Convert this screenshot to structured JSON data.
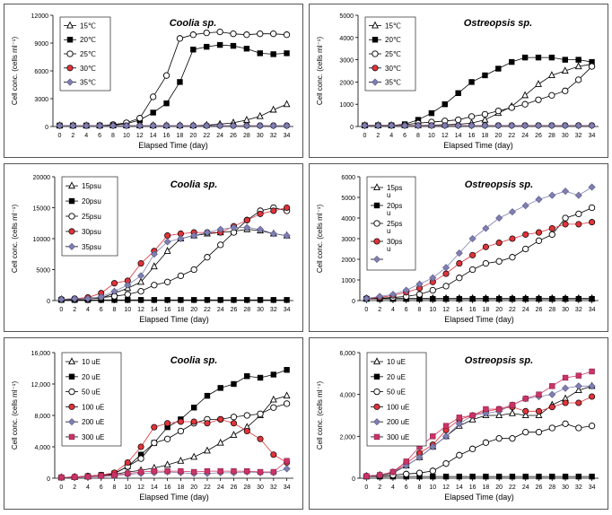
{
  "chart_data": [
    {
      "type": "line",
      "title": "Coolia sp.",
      "xlabel": "Elapsed Time (day)",
      "ylabel": "Cell conc. (cells ml⁻¹)",
      "x": [
        0,
        2,
        4,
        6,
        8,
        10,
        12,
        14,
        16,
        18,
        20,
        22,
        24,
        26,
        28,
        30,
        32,
        34
      ],
      "x_ticks": [
        "0",
        "2",
        "4",
        "6",
        "8",
        "10",
        "12",
        "14",
        "16",
        "18",
        "20",
        "22",
        "24",
        "26",
        "28",
        "30",
        "32",
        "34"
      ],
      "ylim": [
        0,
        12000
      ],
      "y_ticks": [
        "0",
        "3000",
        "6000",
        "9000",
        "12000"
      ],
      "legend_position": "top-left",
      "series": [
        {
          "name": "15℃",
          "marker": "triangle",
          "color": "#000000",
          "values": [
            100,
            100,
            100,
            100,
            100,
            100,
            100,
            100,
            100,
            100,
            100,
            150,
            250,
            400,
            700,
            1100,
            1800,
            2400
          ]
        },
        {
          "name": "20℃",
          "marker": "square",
          "color": "#000000",
          "values": [
            100,
            100,
            100,
            100,
            150,
            300,
            700,
            1500,
            2500,
            4800,
            8300,
            8600,
            8800,
            8700,
            8400,
            7900,
            7800,
            7900
          ]
        },
        {
          "name": "25℃",
          "marker": "circle-open",
          "color": "#000000",
          "values": [
            100,
            100,
            100,
            100,
            200,
            400,
            900,
            3200,
            5500,
            9500,
            9900,
            10100,
            10200,
            10000,
            9900,
            10000,
            10000,
            9900
          ]
        },
        {
          "name": "30℃",
          "marker": "circle-red",
          "color": "#e0333a",
          "values": [
            100,
            100,
            100,
            100,
            100,
            100,
            100,
            100,
            100,
            100,
            100,
            100,
            100,
            100,
            100,
            100,
            100,
            100
          ]
        },
        {
          "name": "35℃",
          "marker": "diamond",
          "color": "#7f7fb2",
          "values": [
            80,
            80,
            80,
            80,
            80,
            80,
            80,
            80,
            80,
            80,
            80,
            80,
            80,
            80,
            80,
            80,
            80,
            80
          ]
        }
      ]
    },
    {
      "type": "line",
      "title": "Ostreopsis sp.",
      "xlabel": "Elapsed Time (day)",
      "ylabel": "Cell conc. (cells ml⁻¹)",
      "x": [
        0,
        2,
        4,
        6,
        8,
        10,
        12,
        14,
        16,
        18,
        20,
        22,
        24,
        26,
        28,
        30,
        32,
        34
      ],
      "x_ticks": [
        "0",
        "2",
        "4",
        "6",
        "8",
        "10",
        "12",
        "14",
        "16",
        "18",
        "20",
        "22",
        "24",
        "26",
        "28",
        "30",
        "32",
        "34"
      ],
      "ylim": [
        0,
        5000
      ],
      "y_ticks": [
        "0",
        "1000",
        "2000",
        "3000",
        "4000",
        "5000"
      ],
      "legend_position": "top-left",
      "series": [
        {
          "name": "15℃",
          "marker": "triangle",
          "color": "#000000",
          "values": [
            50,
            50,
            50,
            50,
            50,
            60,
            80,
            100,
            150,
            300,
            600,
            900,
            1400,
            1900,
            2300,
            2500,
            2700,
            2800
          ]
        },
        {
          "name": "20℃",
          "marker": "square",
          "color": "#000000",
          "values": [
            50,
            50,
            50,
            100,
            300,
            600,
            1000,
            1500,
            2000,
            2300,
            2600,
            2900,
            3100,
            3100,
            3100,
            3000,
            3000,
            2900
          ]
        },
        {
          "name": "25℃",
          "marker": "circle-open",
          "color": "#000000",
          "values": [
            50,
            50,
            50,
            80,
            150,
            200,
            250,
            300,
            450,
            550,
            700,
            850,
            1000,
            1200,
            1400,
            1600,
            2100,
            2700
          ]
        },
        {
          "name": "30℃",
          "marker": "circle-red",
          "color": "#e0333a",
          "values": [
            50,
            50,
            50,
            50,
            50,
            50,
            50,
            50,
            50,
            50,
            50,
            50,
            50,
            50,
            50,
            50,
            50,
            50
          ]
        },
        {
          "name": "35℃",
          "marker": "diamond",
          "color": "#7f7fb2",
          "values": [
            40,
            40,
            40,
            40,
            40,
            40,
            40,
            40,
            40,
            40,
            40,
            40,
            40,
            40,
            40,
            40,
            40,
            40
          ]
        }
      ]
    },
    {
      "type": "line",
      "title": "Coolia sp.",
      "xlabel": "Elapsed Time (day)",
      "ylabel": "Cell conc. (cells ml⁻¹)",
      "x": [
        0,
        2,
        4,
        6,
        8,
        10,
        12,
        14,
        16,
        18,
        20,
        22,
        24,
        26,
        28,
        30,
        32,
        34
      ],
      "x_ticks": [
        "0",
        "2",
        "4",
        "6",
        "8",
        "10",
        "12",
        "14",
        "16",
        "18",
        "20",
        "22",
        "24",
        "26",
        "28",
        "30",
        "32",
        "34"
      ],
      "ylim": [
        0,
        20000
      ],
      "y_ticks": [
        "0",
        "5000",
        "10000",
        "15000",
        "20000"
      ],
      "legend_position": "top-left",
      "series": [
        {
          "name": "15psu",
          "marker": "triangle",
          "color": "#000000",
          "values": [
            200,
            200,
            300,
            400,
            1200,
            2000,
            3000,
            5500,
            8000,
            10000,
            10500,
            10800,
            11000,
            11200,
            11500,
            11300,
            10800,
            10500
          ]
        },
        {
          "name": "20psu",
          "marker": "square",
          "color": "#000000",
          "values": [
            100,
            100,
            100,
            100,
            100,
            100,
            100,
            100,
            100,
            100,
            100,
            100,
            100,
            100,
            100,
            100,
            100,
            100
          ]
        },
        {
          "name": "25psu",
          "marker": "circle-open",
          "color": "#000000",
          "values": [
            200,
            300,
            400,
            500,
            700,
            1000,
            1500,
            2500,
            3000,
            4000,
            5000,
            7000,
            9000,
            11000,
            13000,
            14500,
            15000,
            14500
          ]
        },
        {
          "name": "30psu",
          "marker": "circle-red",
          "color": "#e0333a",
          "values": [
            200,
            300,
            500,
            1200,
            2800,
            3200,
            6000,
            8000,
            10500,
            10800,
            11000,
            11000,
            11000,
            12000,
            13000,
            14000,
            14500,
            15000
          ]
        },
        {
          "name": "35psu",
          "marker": "diamond",
          "color": "#7f7fb2",
          "values": [
            200,
            300,
            300,
            600,
            1500,
            2500,
            4000,
            7500,
            9500,
            10000,
            10500,
            11000,
            11500,
            11800,
            11800,
            11500,
            10800,
            10500
          ]
        }
      ]
    },
    {
      "type": "line",
      "title": "Ostreopsis sp.",
      "xlabel": "Elapsed Time (day)",
      "ylabel": "Cell conc. (cells ml⁻¹)",
      "x": [
        0,
        2,
        4,
        6,
        8,
        10,
        12,
        14,
        16,
        18,
        20,
        22,
        24,
        26,
        28,
        30,
        32,
        34
      ],
      "x_ticks": [
        "0",
        "2",
        "4",
        "6",
        "8",
        "10",
        "12",
        "14",
        "16",
        "18",
        "20",
        "22",
        "24",
        "26",
        "28",
        "30",
        "32",
        "34"
      ],
      "ylim": [
        0,
        6000
      ],
      "y_ticks": [
        "0",
        "1000",
        "2000",
        "3000",
        "4000",
        "5000",
        "6000"
      ],
      "legend_position": "top-left",
      "series": [
        {
          "name": "15ps u",
          "marker": "triangle",
          "color": "#000000",
          "values": [
            100,
            100,
            100,
            100,
            100,
            100,
            100,
            100,
            100,
            100,
            100,
            100,
            100,
            100,
            100,
            100,
            100,
            100
          ]
        },
        {
          "name": "20ps u",
          "marker": "square",
          "color": "#000000",
          "values": [
            80,
            80,
            80,
            80,
            80,
            80,
            80,
            80,
            80,
            80,
            80,
            80,
            80,
            80,
            80,
            80,
            80,
            80
          ]
        },
        {
          "name": "25ps u",
          "marker": "circle-open",
          "color": "#000000",
          "values": [
            100,
            120,
            150,
            200,
            300,
            500,
            700,
            1100,
            1500,
            1800,
            1900,
            2100,
            2500,
            2900,
            3200,
            4000,
            4200,
            4500
          ]
        },
        {
          "name": "30ps u",
          "marker": "circle-red",
          "color": "#e0333a",
          "values": [
            100,
            150,
            250,
            400,
            600,
            900,
            1300,
            1800,
            2200,
            2600,
            2800,
            3000,
            3200,
            3300,
            3500,
            3700,
            3700,
            3800
          ]
        },
        {
          "name": "",
          "marker": "diamond",
          "color": "#7f7fb2",
          "values": [
            100,
            200,
            300,
            500,
            800,
            1100,
            1600,
            2300,
            3000,
            3500,
            4000,
            4300,
            4600,
            4900,
            5100,
            5300,
            5100,
            5500
          ]
        }
      ]
    },
    {
      "type": "line",
      "title": "Coolia sp.",
      "xlabel": "Elapsed Time (day)",
      "ylabel": "Cell conc. (cells ml⁻¹)",
      "x": [
        0,
        2,
        4,
        6,
        8,
        10,
        12,
        14,
        16,
        18,
        20,
        22,
        24,
        26,
        28,
        30,
        32,
        34
      ],
      "x_ticks": [
        "0",
        "2",
        "4",
        "6",
        "8",
        "10",
        "12",
        "14",
        "16",
        "18",
        "20",
        "22",
        "24",
        "26",
        "28",
        "30",
        "32",
        "34"
      ],
      "ylim": [
        0,
        16000
      ],
      "y_ticks": [
        "0",
        "4,000",
        "8,000",
        "12,000",
        "16,000"
      ],
      "legend_position": "top-left",
      "series": [
        {
          "name": "10 uE",
          "marker": "triangle",
          "color": "#000000",
          "values": [
            100,
            150,
            200,
            300,
            500,
            800,
            1000,
            1300,
            1700,
            2200,
            2700,
            3500,
            4500,
            5500,
            6500,
            8000,
            10000,
            10500
          ]
        },
        {
          "name": "20 uE",
          "marker": "square",
          "color": "#000000",
          "values": [
            100,
            150,
            250,
            400,
            600,
            1500,
            3000,
            4500,
            6500,
            7500,
            9000,
            10500,
            11500,
            12000,
            13000,
            12800,
            13200,
            13800
          ]
        },
        {
          "name": "50 uE",
          "marker": "circle-open",
          "color": "#000000",
          "values": [
            100,
            150,
            250,
            400,
            600,
            1500,
            2500,
            4500,
            5000,
            6000,
            7000,
            7500,
            7500,
            7800,
            8000,
            8200,
            9000,
            9500
          ]
        },
        {
          "name": "100 uE",
          "marker": "circle-red",
          "color": "#e0333a",
          "values": [
            100,
            150,
            250,
            400,
            700,
            2000,
            4000,
            6500,
            7000,
            7200,
            7200,
            7000,
            7500,
            7000,
            6000,
            5000,
            3000,
            2000
          ]
        },
        {
          "name": "200 uE",
          "marker": "diamond",
          "color": "#7f7fb2",
          "values": [
            100,
            100,
            150,
            200,
            300,
            500,
            600,
            700,
            800,
            700,
            600,
            600,
            700,
            700,
            800,
            700,
            700,
            1200
          ]
        },
        {
          "name": "300 uE",
          "marker": "square-pink",
          "color": "#cc3366",
          "values": [
            100,
            150,
            200,
            300,
            400,
            600,
            800,
            900,
            900,
            900,
            800,
            900,
            900,
            900,
            900,
            800,
            800,
            2200
          ]
        }
      ]
    },
    {
      "type": "line",
      "title": "Ostreopsis sp.",
      "xlabel": "Elapsed Time (day)",
      "ylabel": "Cell conc. (cells ml⁻¹)",
      "x": [
        0,
        2,
        4,
        6,
        8,
        10,
        12,
        14,
        16,
        18,
        20,
        22,
        24,
        26,
        28,
        30,
        32,
        34
      ],
      "x_ticks": [
        "0",
        "2",
        "4",
        "6",
        "8",
        "10",
        "12",
        "14",
        "16",
        "18",
        "20",
        "22",
        "24",
        "26",
        "28",
        "30",
        "32",
        "34"
      ],
      "ylim": [
        0,
        6000
      ],
      "y_ticks": [
        "0",
        "2,000",
        "4,000",
        "6,000"
      ],
      "legend_position": "top-left",
      "series": [
        {
          "name": "10 uE",
          "marker": "triangle",
          "color": "#000000",
          "values": [
            100,
            150,
            250,
            600,
            1000,
            1500,
            2000,
            2500,
            2800,
            3000,
            3000,
            3100,
            3000,
            3000,
            3500,
            3800,
            4200,
            4400
          ]
        },
        {
          "name": "20 uE",
          "marker": "square",
          "color": "#000000",
          "values": [
            80,
            80,
            80,
            80,
            80,
            80,
            80,
            80,
            80,
            80,
            80,
            80,
            80,
            80,
            80,
            80,
            80,
            80
          ]
        },
        {
          "name": "50 uE",
          "marker": "circle-open",
          "color": "#000000",
          "values": [
            100,
            120,
            150,
            200,
            250,
            350,
            700,
            1100,
            1400,
            1700,
            1900,
            1900,
            2200,
            2200,
            2400,
            2600,
            2400,
            2500
          ]
        },
        {
          "name": "100 uE",
          "marker": "circle-red",
          "color": "#e0333a",
          "values": [
            100,
            150,
            300,
            700,
            1200,
            1600,
            2300,
            2800,
            3000,
            3200,
            3300,
            3400,
            3200,
            3200,
            3400,
            3600,
            3600,
            3900
          ]
        },
        {
          "name": "200 uE",
          "marker": "diamond",
          "color": "#7f7fb2",
          "values": [
            100,
            150,
            300,
            600,
            1000,
            1500,
            2000,
            2600,
            3000,
            3100,
            3200,
            3500,
            3800,
            3900,
            4000,
            4300,
            4400,
            4400
          ]
        },
        {
          "name": "300 uE",
          "marker": "square-pink",
          "color": "#cc3366",
          "values": [
            100,
            150,
            300,
            800,
            1500,
            2000,
            2500,
            2900,
            3000,
            3300,
            3300,
            3500,
            3800,
            4000,
            4400,
            4800,
            4900,
            5100
          ]
        }
      ]
    }
  ]
}
